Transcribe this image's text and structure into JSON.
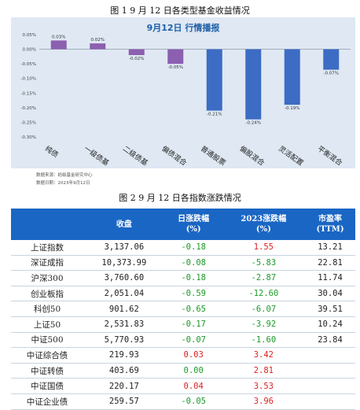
{
  "figure1": {
    "caption": "图 1   9 月 12 日各类型基金收益情况",
    "source": "数据来源：蚂蚁基金研究中心",
    "date": "数据日期：2023年9月12日"
  },
  "chart_data": {
    "type": "bar",
    "title": "9月12日  行情播报",
    "categories": [
      "纯债",
      "一级债基",
      "二级债基",
      "偏债混合",
      "普通股票",
      "偏股混合",
      "灵活配置",
      "平衡混合"
    ],
    "values": [
      0.03,
      0.02,
      -0.02,
      -0.05,
      -0.21,
      -0.24,
      -0.19,
      -0.07
    ],
    "value_labels": [
      "0.03%",
      "0.02%",
      "-0.02%",
      "-0.05%",
      "-0.21%",
      "-0.24%",
      "-0.19%",
      "-0.07%"
    ],
    "colors": [
      "#8c5fb0",
      "#8c5fb0",
      "#8c5fb0",
      "#8c5fb0",
      "#3c6cc4",
      "#3c6cc4",
      "#3c6cc4",
      "#3c6cc4"
    ],
    "yticks": [
      "0.05%",
      "0.00%",
      "-0.05%",
      "-0.10%",
      "-0.15%",
      "-0.20%",
      "-0.25%",
      "-0.30%"
    ],
    "ytick_values": [
      0.05,
      0.0,
      -0.05,
      -0.1,
      -0.15,
      -0.2,
      -0.25,
      -0.3
    ],
    "ylim": [
      -0.3,
      0.05
    ],
    "xlabel": "",
    "ylabel": "",
    "grid": false
  },
  "figure2": {
    "caption": "图 2   9 月 12 日各指数涨跌情况",
    "headers": {
      "name": "",
      "close": "收盘",
      "day_change": "日涨跌幅\n(%)",
      "ytd_change": "2023涨跌幅\n(%)",
      "pe": "市盈率\n(TTM)"
    },
    "rows": [
      {
        "name": "上证指数",
        "close": "3,137.06",
        "day": "-0.18",
        "ytd": "1.55",
        "pe": "13.21",
        "day_sign": "neg",
        "ytd_sign": "pos"
      },
      {
        "name": "深证成指",
        "close": "10,373.99",
        "day": "-0.08",
        "ytd": "-5.83",
        "pe": "22.81",
        "day_sign": "neg",
        "ytd_sign": "neg"
      },
      {
        "name": "沪深300",
        "close": "3,760.60",
        "day": "-0.18",
        "ytd": "-2.87",
        "pe": "11.74",
        "day_sign": "neg",
        "ytd_sign": "neg"
      },
      {
        "name": "创业板指",
        "close": "2,051.04",
        "day": "-0.59",
        "ytd": "-12.60",
        "pe": "30.04",
        "day_sign": "neg",
        "ytd_sign": "neg"
      },
      {
        "name": "科创50",
        "close": "901.62",
        "day": "-0.65",
        "ytd": "-6.07",
        "pe": "39.51",
        "day_sign": "neg",
        "ytd_sign": "neg"
      },
      {
        "name": "上证50",
        "close": "2,531.83",
        "day": "-0.17",
        "ytd": "-3.92",
        "pe": "10.24",
        "day_sign": "neg",
        "ytd_sign": "neg"
      },
      {
        "name": "中证500",
        "close": "5,770.93",
        "day": "-0.07",
        "ytd": "-1.60",
        "pe": "23.84",
        "day_sign": "neg",
        "ytd_sign": "neg"
      },
      {
        "name": "中证综合债",
        "close": "219.93",
        "day": "0.03",
        "ytd": "3.42",
        "pe": "",
        "day_sign": "pos",
        "ytd_sign": "pos"
      },
      {
        "name": "中证转债",
        "close": "403.69",
        "day": "0.00",
        "ytd": "2.81",
        "pe": "",
        "day_sign": "flat",
        "ytd_sign": "pos"
      },
      {
        "name": "中证国债",
        "close": "220.17",
        "day": "0.04",
        "ytd": "3.53",
        "pe": "",
        "day_sign": "pos",
        "ytd_sign": "pos"
      },
      {
        "name": "中证企业债",
        "close": "259.57",
        "day": "-0.05",
        "ytd": "3.96",
        "pe": "",
        "day_sign": "neg",
        "ytd_sign": "pos"
      }
    ]
  }
}
